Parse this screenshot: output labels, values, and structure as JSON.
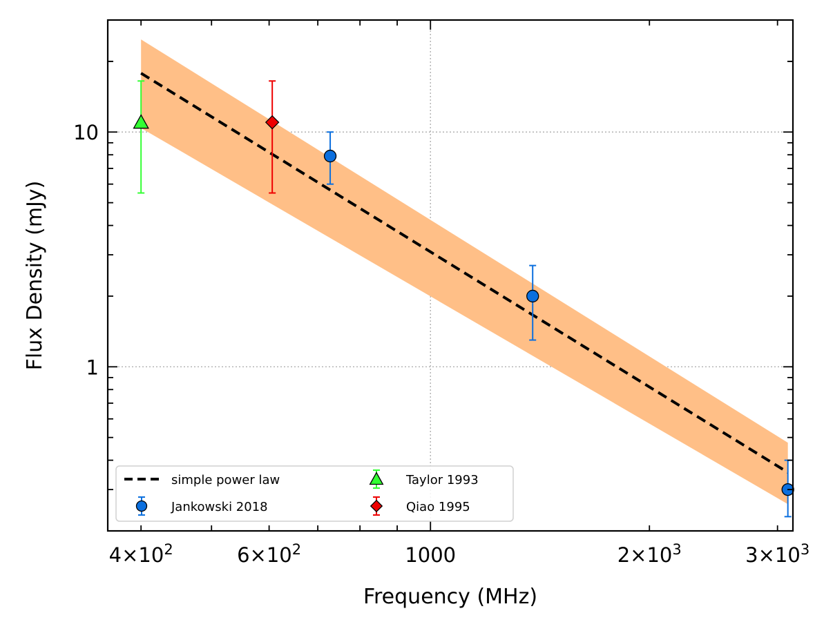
{
  "chart_data": {
    "type": "scatter",
    "xlabel": "Frequency (MHz)",
    "ylabel": "Flux Density (mJy)",
    "xscale": "log",
    "yscale": "log",
    "xlim": [
      360,
      3150
    ],
    "ylim": [
      0.2,
      30
    ],
    "grid": true,
    "legend_placement": "lower-left",
    "x_ticks": [
      {
        "value": 400,
        "mant": "4",
        "base": "10",
        "exp": "2"
      },
      {
        "value": 600,
        "mant": "6",
        "base": "10",
        "exp": "2"
      },
      {
        "value": 1000,
        "text": "1000"
      },
      {
        "value": 2000,
        "mant": "2",
        "base": "10",
        "exp": "3"
      },
      {
        "value": 3000,
        "mant": "3",
        "base": "10",
        "exp": "3"
      }
    ],
    "y_ticks": [
      {
        "value": 1,
        "text": "1"
      },
      {
        "value": 10,
        "text": "10"
      }
    ],
    "fit": {
      "name": "simple power law",
      "color": "#000000",
      "style": "dashed",
      "x": [
        400,
        3100
      ],
      "y": [
        17.8,
        0.355
      ],
      "band_color": "#FFBF87",
      "band_lower": [
        10.4,
        0.26
      ],
      "band_upper": [
        24.8,
        0.475
      ]
    },
    "series": [
      {
        "name": "Jankowski 2018",
        "marker": "circle",
        "color": "#0B6FDE",
        "ecolor": "#0B6FDE",
        "points": [
          {
            "x": 728,
            "y": 7.9,
            "yerr_low": 6.0,
            "yerr_high": 10.0
          },
          {
            "x": 1382,
            "y": 2.0,
            "yerr_low": 1.3,
            "yerr_high": 2.7
          },
          {
            "x": 3100,
            "y": 0.3,
            "yerr_low": 0.23,
            "yerr_high": 0.4
          }
        ]
      },
      {
        "name": "Taylor 1993",
        "marker": "triangle",
        "color": "#33FF33",
        "ecolor": "#33FF33",
        "points": [
          {
            "x": 400,
            "y": 11.0,
            "yerr_low": 5.5,
            "yerr_high": 16.5
          }
        ]
      },
      {
        "name": "Qiao 1995",
        "marker": "diamond",
        "color": "#EE0000",
        "ecolor": "#EE0000",
        "points": [
          {
            "x": 606,
            "y": 11.0,
            "yerr_low": 5.5,
            "yerr_high": 16.5
          }
        ]
      }
    ]
  }
}
